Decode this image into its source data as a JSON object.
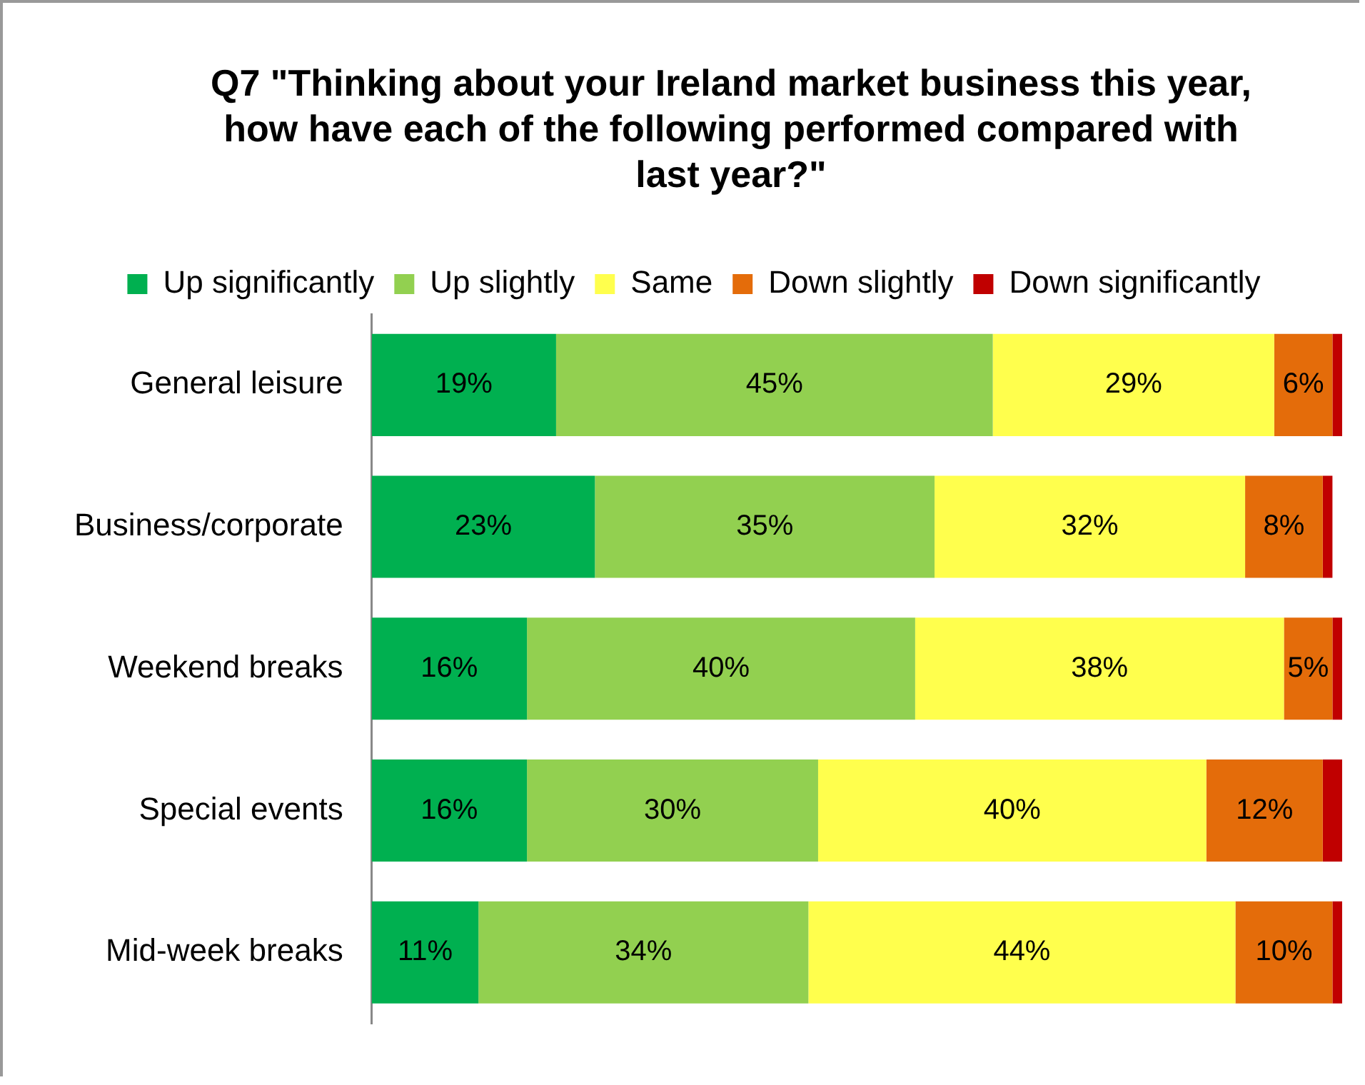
{
  "chart_data": {
    "type": "bar",
    "orientation": "horizontal",
    "stacked": true,
    "title": "Q7 \"Thinking about your Ireland market business this year, how have each of the following performed compared with last year?\"",
    "categories": [
      "General leisure",
      "Business/corporate",
      "Weekend breaks",
      "Special events",
      "Mid-week breaks"
    ],
    "xlim": [
      0,
      100
    ],
    "tick_labels": "y",
    "legend": "top",
    "series": [
      {
        "name": "Up significantly",
        "color": "#00b050",
        "values": [
          19,
          23,
          16,
          16,
          11
        ],
        "value_labels": [
          "19%",
          "23%",
          "16%",
          "16%",
          "11%"
        ]
      },
      {
        "name": "Up slightly",
        "color": "#92d050",
        "values": [
          45,
          35,
          40,
          30,
          34
        ],
        "value_labels": [
          "45%",
          "35%",
          "40%",
          "30%",
          "34%"
        ]
      },
      {
        "name": "Same",
        "color": "#ffff4d",
        "values": [
          29,
          32,
          38,
          40,
          44
        ],
        "value_labels": [
          "29%",
          "32%",
          "38%",
          "40%",
          "44%"
        ]
      },
      {
        "name": "Down slightly",
        "color": "#e46c0a",
        "values": [
          6,
          8,
          5,
          12,
          10
        ],
        "value_labels": [
          "6%",
          "8%",
          "5%",
          "12%",
          "10%"
        ]
      },
      {
        "name": "Down significantly",
        "color": "#c00000",
        "values": [
          1,
          1,
          1,
          2,
          1
        ],
        "value_labels": [
          null,
          null,
          null,
          null,
          null
        ]
      }
    ]
  }
}
